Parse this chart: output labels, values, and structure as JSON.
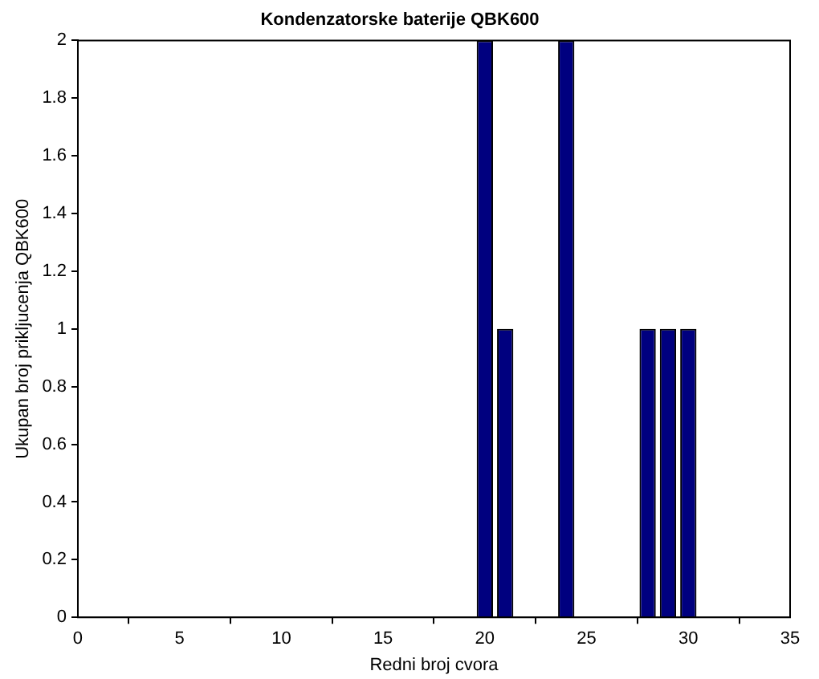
{
  "chart_data": {
    "type": "bar",
    "title": "Kondenzatorske baterije QBK600",
    "xlabel": "Redni broj cvora",
    "ylabel": "Ukupan broj prikljucenja QBK600",
    "x": [
      20,
      21,
      24,
      28,
      29,
      30
    ],
    "values": [
      2,
      1,
      2,
      1,
      1,
      1
    ],
    "color": "#00007f",
    "xlim": [
      0,
      35
    ],
    "xticks": [
      0,
      5,
      10,
      15,
      20,
      25,
      30,
      35
    ],
    "ylim": [
      0,
      2
    ],
    "yticks": [
      0,
      0.2,
      0.4,
      0.6,
      0.8,
      1,
      1.2,
      1.4,
      1.6,
      1.8,
      2
    ],
    "grid": false,
    "legend": false
  }
}
